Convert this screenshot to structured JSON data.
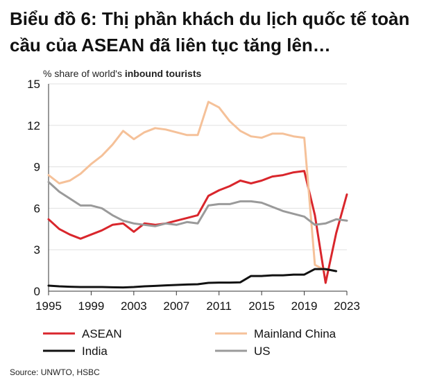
{
  "title": "Biểu đồ 6: Thị phần khách du lịch quốc tế toàn cầu của ASEAN đã liên tục tăng lên…",
  "subtitle_prefix": "% share of world's ",
  "subtitle_bold": "inbound tourists",
  "source": "Source: UNWTO, HSBC",
  "chart_data": {
    "type": "line",
    "x": [
      1995,
      1996,
      1997,
      1998,
      1999,
      2000,
      2001,
      2002,
      2003,
      2004,
      2005,
      2006,
      2007,
      2008,
      2009,
      2010,
      2011,
      2012,
      2013,
      2014,
      2015,
      2016,
      2017,
      2018,
      2019,
      2020,
      2021,
      2022,
      2023
    ],
    "xlim": [
      1995,
      2023
    ],
    "ylim": [
      0,
      15
    ],
    "x_ticks": [
      1995,
      1999,
      2003,
      2007,
      2011,
      2015,
      2019,
      2023
    ],
    "y_ticks": [
      0,
      3,
      6,
      9,
      12,
      15
    ],
    "grid": "horizontal",
    "legend_position": "bottom",
    "series": [
      {
        "name": "ASEAN",
        "color": "#d9262c",
        "values": [
          5.2,
          4.5,
          4.1,
          3.8,
          4.1,
          4.4,
          4.8,
          4.9,
          4.3,
          4.9,
          4.8,
          4.9,
          5.1,
          5.3,
          5.5,
          6.9,
          7.3,
          7.6,
          8.0,
          7.8,
          8.0,
          8.3,
          8.4,
          8.6,
          8.7,
          5.5,
          0.6,
          4.2,
          7.0
        ]
      },
      {
        "name": "Mainland China",
        "color": "#f5c199",
        "values": [
          8.4,
          7.8,
          8.0,
          8.5,
          9.2,
          9.8,
          10.6,
          11.6,
          11.0,
          11.5,
          11.8,
          11.7,
          11.5,
          11.3,
          11.3,
          13.7,
          13.3,
          12.3,
          11.6,
          11.2,
          11.1,
          11.4,
          11.4,
          11.2,
          11.1,
          1.9,
          1.5,
          null,
          null
        ]
      },
      {
        "name": "India",
        "color": "#111111",
        "values": [
          0.4,
          0.35,
          0.32,
          0.3,
          0.3,
          0.3,
          0.28,
          0.27,
          0.3,
          0.35,
          0.38,
          0.42,
          0.45,
          0.48,
          0.5,
          0.6,
          0.62,
          0.62,
          0.64,
          1.1,
          1.1,
          1.15,
          1.15,
          1.2,
          1.2,
          1.6,
          1.6,
          1.45,
          null
        ]
      },
      {
        "name": "US",
        "color": "#9a9a9a",
        "values": [
          7.9,
          7.2,
          6.7,
          6.2,
          6.2,
          6.0,
          5.5,
          5.1,
          4.9,
          4.8,
          4.7,
          4.9,
          4.8,
          5.0,
          4.9,
          6.2,
          6.3,
          6.3,
          6.5,
          6.5,
          6.4,
          6.1,
          5.8,
          5.6,
          5.4,
          4.8,
          4.9,
          5.2,
          5.1
        ]
      }
    ]
  }
}
